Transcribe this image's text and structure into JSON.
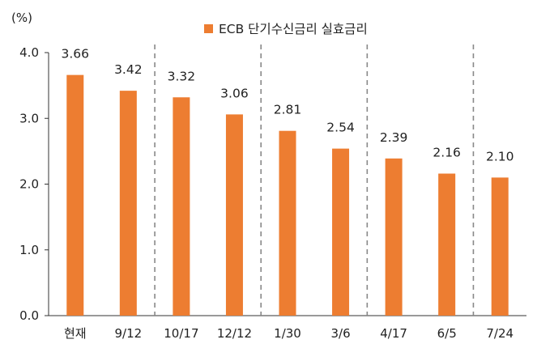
{
  "chart_data": {
    "type": "bar",
    "unit_label": "(%)",
    "categories": [
      "현재",
      "9/12",
      "10/17",
      "12/12",
      "1/30",
      "3/6",
      "4/17",
      "6/5",
      "7/24"
    ],
    "series": [
      {
        "name": "ECB 단기수신금리 실효금리",
        "values": [
          3.66,
          3.42,
          3.32,
          3.06,
          2.81,
          2.54,
          2.39,
          2.16,
          2.1
        ],
        "color": "#ed7d31"
      }
    ],
    "data_labels": [
      "3.66",
      "3.42",
      "3.32",
      "3.06",
      "2.81",
      "2.54",
      "2.39",
      "2.16",
      "2.10"
    ],
    "y_ticks": [
      "0.0",
      "1.0",
      "2.0",
      "3.0",
      "4.0"
    ],
    "ylim": [
      0,
      4
    ],
    "grid": false,
    "legend_position": "top-center",
    "dashed_dividers_after_categories": [
      "9/12",
      "12/12",
      "3/6",
      "6/5"
    ]
  }
}
